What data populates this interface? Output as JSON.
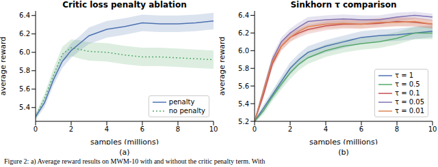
{
  "chart_data": [
    {
      "type": "line",
      "title": "Critic loss penalty ablation",
      "x_label": "samples (millions)",
      "y_label": "average reward",
      "annotations": [
        "(a)"
      ],
      "x": [
        0,
        0.5,
        1,
        1.5,
        2,
        2.5,
        3,
        4,
        5,
        6,
        7,
        8,
        9,
        10
      ],
      "xlim": [
        0,
        10
      ],
      "xticks": [
        0,
        2,
        4,
        6,
        8,
        10
      ],
      "ylim": [
        5.25,
        6.45
      ],
      "yticks": [
        5.4,
        5.6,
        5.8,
        {
          "value": 6,
          "label": "6.0"
        },
        6.2,
        6.4
      ],
      "grid": false,
      "legend": "lower right",
      "series": [
        {
          "name": "penalty",
          "color": "#4c72b0",
          "line_style": "solid",
          "values": [
            5.3,
            5.45,
            5.7,
            5.9,
            6.02,
            6.1,
            6.18,
            6.25,
            6.28,
            6.32,
            6.31,
            6.31,
            6.32,
            6.34
          ],
          "error": [
            0.03,
            0.05,
            0.06,
            0.07,
            0.08,
            0.08,
            0.09,
            0.09,
            0.09,
            0.09,
            0.09,
            0.09,
            0.09,
            0.09
          ]
        },
        {
          "name": "no penalty",
          "color": "#55a868",
          "line_style": "dotted",
          "values": [
            5.3,
            5.5,
            5.75,
            5.98,
            6.05,
            6.03,
            6.01,
            6.0,
            5.97,
            5.95,
            5.95,
            5.94,
            5.93,
            5.92
          ],
          "error": [
            0.03,
            0.05,
            0.07,
            0.08,
            0.09,
            0.1,
            0.1,
            0.1,
            0.1,
            0.1,
            0.1,
            0.1,
            0.1,
            0.1
          ]
        }
      ]
    },
    {
      "type": "line",
      "title": "Sinkhorn τ comparison",
      "x_label": "samples (millions)",
      "y_label": "average reward",
      "annotations": [
        "(b)"
      ],
      "x": [
        0,
        0.5,
        1,
        1.5,
        2,
        2.5,
        3,
        4,
        5,
        6,
        7,
        8,
        9,
        10
      ],
      "xlim": [
        0,
        10
      ],
      "xticks": [
        0,
        2,
        4,
        6,
        8,
        10
      ],
      "ylim": [
        5.2,
        6.45
      ],
      "yticks": [
        5.2,
        5.4,
        5.6,
        5.8,
        {
          "value": 6,
          "label": "6.0"
        },
        6.2,
        6.4
      ],
      "grid": false,
      "legend": "lower right",
      "series": [
        {
          "name": "τ = 1",
          "color": "#4c72b0",
          "line_style": "solid",
          "values": [
            5.2,
            5.35,
            5.5,
            5.65,
            5.8,
            5.9,
            5.98,
            6.05,
            6.1,
            6.15,
            6.17,
            6.18,
            6.2,
            6.22
          ],
          "error": [
            0.02,
            0.04,
            0.05,
            0.06,
            0.07,
            0.07,
            0.07,
            0.07,
            0.07,
            0.07,
            0.07,
            0.07,
            0.07,
            0.07
          ]
        },
        {
          "name": "τ = 0.5",
          "color": "#55a868",
          "line_style": "solid",
          "values": [
            5.2,
            5.32,
            5.48,
            5.62,
            5.75,
            5.85,
            5.92,
            6.0,
            6.05,
            6.08,
            6.1,
            6.14,
            6.2,
            6.2
          ],
          "error": [
            0.02,
            0.04,
            0.05,
            0.06,
            0.07,
            0.07,
            0.07,
            0.07,
            0.07,
            0.07,
            0.07,
            0.07,
            0.07,
            0.07
          ]
        },
        {
          "name": "τ = 0.1",
          "color": "#c44e52",
          "line_style": "solid",
          "values": [
            5.2,
            5.5,
            5.85,
            6.05,
            6.15,
            6.2,
            6.24,
            6.28,
            6.3,
            6.3,
            6.31,
            6.33,
            6.32,
            6.3
          ],
          "error": [
            0.02,
            0.04,
            0.05,
            0.05,
            0.05,
            0.05,
            0.05,
            0.05,
            0.05,
            0.05,
            0.05,
            0.05,
            0.05,
            0.05
          ]
        },
        {
          "name": "τ = 0.05",
          "color": "#8172b2",
          "line_style": "solid",
          "values": [
            5.2,
            5.55,
            5.9,
            6.1,
            6.2,
            6.27,
            6.33,
            6.35,
            6.36,
            6.35,
            6.35,
            6.38,
            6.4,
            6.38
          ],
          "error": [
            0.02,
            0.04,
            0.05,
            0.05,
            0.05,
            0.05,
            0.05,
            0.05,
            0.05,
            0.05,
            0.05,
            0.05,
            0.04,
            0.04
          ]
        },
        {
          "name": "τ = 0.01",
          "color": "#dd8452",
          "line_style": "solid",
          "values": [
            5.2,
            5.55,
            5.88,
            6.05,
            6.15,
            6.22,
            6.27,
            6.3,
            6.31,
            6.3,
            6.32,
            6.32,
            6.33,
            6.3
          ],
          "error": [
            0.02,
            0.04,
            0.05,
            0.05,
            0.05,
            0.05,
            0.05,
            0.05,
            0.05,
            0.05,
            0.05,
            0.05,
            0.05,
            0.05
          ]
        }
      ]
    }
  ],
  "caption": "Figure 2: a) Average reward results on MWM-10 with and without the critic penalty term. With"
}
